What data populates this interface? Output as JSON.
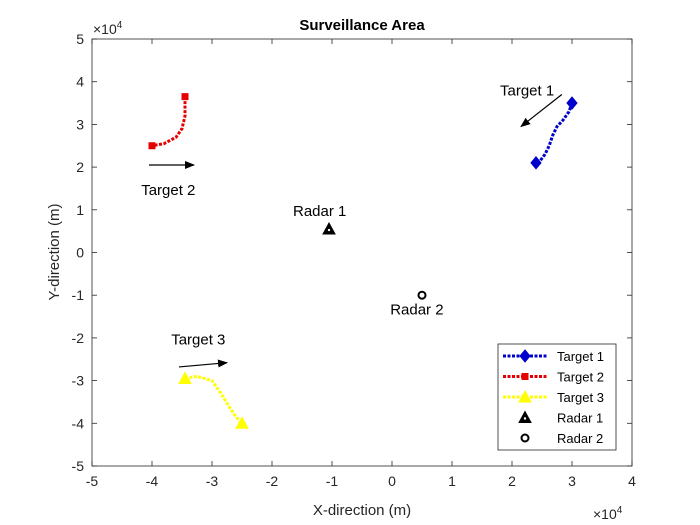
{
  "chart_data": {
    "type": "line",
    "title": "Surveillance Area",
    "xlabel": "X-direction (m)",
    "ylabel": "Y-direction (m)",
    "xlim": [
      -5,
      4
    ],
    "ylim": [
      -5,
      5
    ],
    "xticks": [
      "-5",
      "-4",
      "-3",
      "-2",
      "-1",
      "0",
      "1",
      "2",
      "3",
      "4"
    ],
    "yticks": [
      "-5",
      "-4",
      "-3",
      "-2",
      "-1",
      "0",
      "1",
      "2",
      "3",
      "4",
      "5"
    ],
    "x_exponent": {
      "base": "×10",
      "power": "4"
    },
    "y_exponent": {
      "base": "×10",
      "power": "4"
    },
    "legend_position": "bottom-right",
    "series": [
      {
        "name": "Target 1",
        "color": "#0000cc",
        "marker": "diamond",
        "x": [
          3.0,
          2.95,
          2.85,
          2.75,
          2.68,
          2.62,
          2.55,
          2.47,
          2.4
        ],
        "y": [
          3.5,
          3.3,
          3.1,
          2.95,
          2.75,
          2.5,
          2.3,
          2.15,
          2.1
        ]
      },
      {
        "name": "Target 2",
        "color": "#e60000",
        "marker": "square",
        "x": [
          -3.45,
          -3.45,
          -3.5,
          -3.6,
          -3.8,
          -4.0
        ],
        "y": [
          3.65,
          3.2,
          2.9,
          2.7,
          2.55,
          2.5
        ]
      },
      {
        "name": "Target 3",
        "color": "#ffff00",
        "marker": "triangle",
        "x": [
          -3.45,
          -3.25,
          -3.0,
          -2.85,
          -2.72,
          -2.6,
          -2.5
        ],
        "y": [
          -2.95,
          -2.9,
          -3.0,
          -3.3,
          -3.6,
          -3.85,
          -4.0
        ]
      },
      {
        "name": "Radar 1",
        "color": "#000000",
        "marker": "triangle-filled",
        "x": [
          -1.05
        ],
        "y": [
          0.55
        ]
      },
      {
        "name": "Radar 2",
        "color": "#000000",
        "marker": "circle-open",
        "x": [
          0.5
        ],
        "y": [
          -1.0
        ]
      }
    ],
    "annotations": [
      {
        "text": "Target 1",
        "x": 1.8,
        "y": 3.68
      },
      {
        "text": "Target 2",
        "x": -4.18,
        "y": 1.35
      },
      {
        "text": "Target 3",
        "x": -3.68,
        "y": -2.15
      },
      {
        "text": "Radar 1",
        "x": -1.65,
        "y": 0.85
      },
      {
        "text": "Radar 2",
        "x": -0.03,
        "y": -1.45
      }
    ],
    "arrows": [
      {
        "from": [
          2.83,
          3.7
        ],
        "to": [
          2.15,
          2.95
        ]
      },
      {
        "from": [
          -4.05,
          2.05
        ],
        "to": [
          -3.3,
          2.05
        ]
      },
      {
        "from": [
          -3.55,
          -2.68
        ],
        "to": [
          -2.75,
          -2.58
        ]
      }
    ]
  }
}
